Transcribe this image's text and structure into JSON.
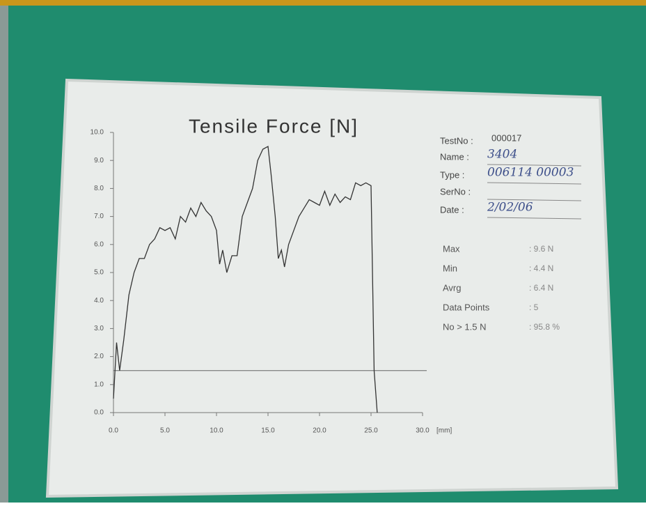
{
  "chart_data": {
    "type": "line",
    "title": "Tensile Force [N]",
    "x_unit": "[mm]",
    "x": [
      0,
      0.3,
      0.6,
      1,
      1.5,
      2,
      2.5,
      3,
      3.5,
      4,
      4.5,
      5,
      5.5,
      6,
      6.5,
      7,
      7.5,
      8,
      8.5,
      9,
      9.5,
      10,
      10.3,
      10.6,
      11,
      11.5,
      12,
      12.5,
      13,
      13.5,
      14,
      14.5,
      15,
      15.3,
      15.7,
      16,
      16.3,
      16.6,
      17,
      17.5,
      18,
      18.5,
      19,
      19.5,
      20,
      20.5,
      21,
      21.5,
      22,
      22.5,
      23,
      23.5,
      24,
      24.5,
      25,
      25.3,
      25.6
    ],
    "series": [
      {
        "name": "Tensile Force",
        "color": "#333333",
        "values": [
          0.5,
          2.5,
          1.5,
          2.6,
          4.2,
          5.0,
          5.5,
          5.5,
          6.0,
          6.2,
          6.6,
          6.5,
          6.6,
          6.2,
          7.0,
          6.8,
          7.3,
          7.0,
          7.5,
          7.2,
          7.0,
          6.5,
          5.3,
          5.8,
          5.0,
          5.6,
          5.6,
          7.0,
          7.5,
          8.0,
          9.0,
          9.4,
          9.5,
          8.5,
          7.0,
          5.5,
          5.8,
          5.2,
          6.0,
          6.5,
          7.0,
          7.3,
          7.6,
          7.5,
          7.4,
          7.9,
          7.4,
          7.8,
          7.5,
          7.7,
          7.6,
          8.2,
          8.1,
          8.2,
          8.1,
          1.5,
          0
        ]
      }
    ],
    "threshold": 1.5,
    "xlim": [
      0,
      30
    ],
    "ylim": [
      0,
      10
    ],
    "xticks": [
      {
        "value": 0,
        "label": "0.0"
      },
      {
        "value": 5,
        "label": "5.0"
      },
      {
        "value": 10,
        "label": "10.0"
      },
      {
        "value": 15,
        "label": "15.0"
      },
      {
        "value": 20,
        "label": "20.0"
      },
      {
        "value": 25,
        "label": "25.0"
      },
      {
        "value": 30,
        "label": "30.0"
      }
    ],
    "yticks": [
      {
        "value": 0,
        "label": "0.0"
      },
      {
        "value": 1,
        "label": "1.0"
      },
      {
        "value": 2,
        "label": "2.0"
      },
      {
        "value": 3,
        "label": "3.0"
      },
      {
        "value": 4,
        "label": "4.0"
      },
      {
        "value": 5,
        "label": "5.0"
      },
      {
        "value": 6,
        "label": "6.0"
      },
      {
        "value": 7,
        "label": "7.0"
      },
      {
        "value": 8,
        "label": "8.0"
      },
      {
        "value": 9,
        "label": "9.0"
      },
      {
        "value": 10,
        "label": "10.0"
      }
    ]
  },
  "fields": [
    {
      "label": "TestNo :",
      "value": "000017"
    },
    {
      "label": "Name :",
      "value": "3404"
    },
    {
      "label": "Type :",
      "value": "006114 00003"
    },
    {
      "label": "SerNo :",
      "value": ""
    },
    {
      "label": "Date :",
      "value": "2/02/06"
    }
  ],
  "stats": [
    {
      "label": "Max",
      "value": ": 9.6 N"
    },
    {
      "label": "Min",
      "value": ": 4.4 N"
    },
    {
      "label": "Avrg",
      "value": ": 6.4 N"
    },
    {
      "label": "Data Points",
      "value": ": 5"
    },
    {
      "label": "No > 1.5 N",
      "value": ": 95.8 %"
    }
  ]
}
